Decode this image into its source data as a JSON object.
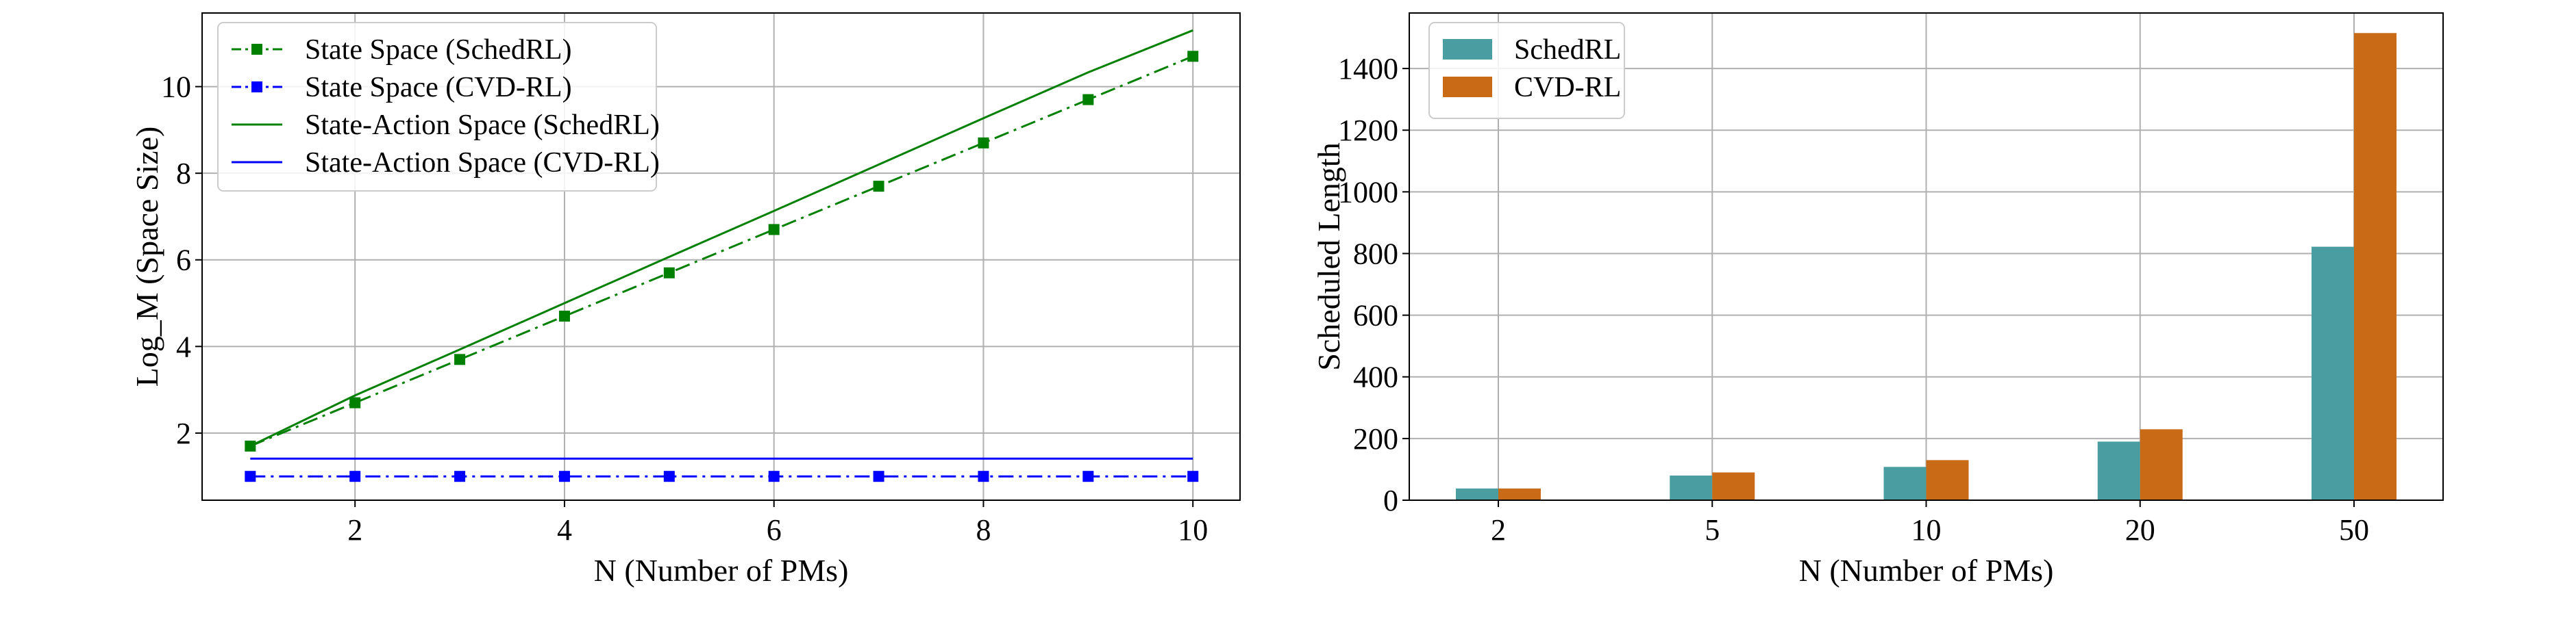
{
  "chart_data": [
    {
      "type": "line",
      "xlabel": "N (Number of PMs)",
      "ylabel": "Log_M (Space Size)",
      "xlim": [
        0.54,
        10.45
      ],
      "ylim": [
        0.45,
        11.7
      ],
      "xticks": [
        2,
        4,
        6,
        8,
        10
      ],
      "yticks": [
        2,
        4,
        6,
        8,
        10
      ],
      "grid": true,
      "legend_placement": "top-left",
      "x": [
        1,
        2,
        3,
        4,
        5,
        6,
        7,
        8,
        9,
        10
      ],
      "series": [
        {
          "name": "State Space (SchedRL)",
          "color": "#008000",
          "style": "dashdot-marker",
          "values": [
            1.7,
            2.7,
            3.7,
            4.7,
            5.7,
            6.7,
            7.7,
            8.7,
            9.7,
            10.7
          ]
        },
        {
          "name": "State Space (CVD-RL)",
          "color": "#0000ff",
          "style": "dashdot-marker",
          "values": [
            1.0,
            1.0,
            1.0,
            1.0,
            1.0,
            1.0,
            1.0,
            1.0,
            1.0,
            1.0
          ]
        },
        {
          "name": "State-Action Space (SchedRL)",
          "color": "#008000",
          "style": "solid",
          "values": [
            1.7,
            2.87,
            3.93,
            5.0,
            6.07,
            7.13,
            8.2,
            9.27,
            10.33,
            11.3
          ]
        },
        {
          "name": "State-Action Space (CVD-RL)",
          "color": "#0000ff",
          "style": "solid",
          "values": [
            1.41,
            1.41,
            1.41,
            1.41,
            1.41,
            1.41,
            1.41,
            1.41,
            1.41,
            1.41
          ]
        }
      ]
    },
    {
      "type": "bar",
      "xlabel": "N (Number of PMs)",
      "ylabel": "Scheduled Length",
      "ylim": [
        0,
        1580
      ],
      "yticks": [
        0,
        200,
        400,
        600,
        800,
        1000,
        1200,
        1400
      ],
      "grid": true,
      "legend_placement": "top-left",
      "categories": [
        "2",
        "5",
        "10",
        "20",
        "50"
      ],
      "series": [
        {
          "name": "SchedRL",
          "color": "#4a9ea1",
          "values": [
            38,
            80,
            108,
            190,
            822
          ]
        },
        {
          "name": "CVD-RL",
          "color": "#c96a17",
          "values": [
            38,
            90,
            130,
            230,
            1515
          ]
        }
      ]
    }
  ]
}
